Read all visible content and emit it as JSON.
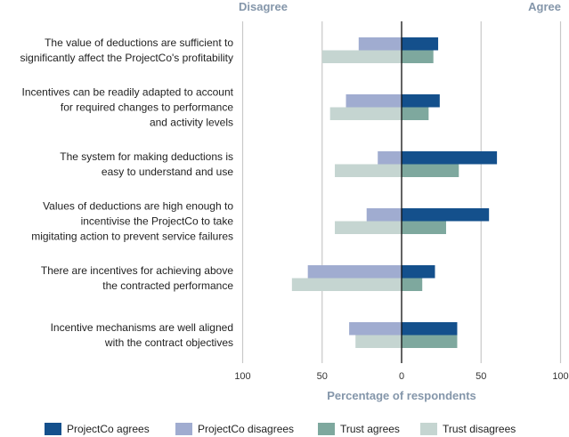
{
  "chart_data": {
    "type": "bar",
    "orientation": "horizontal-diverging",
    "header_left": "Disagree",
    "header_right": "Agree",
    "xlabel": "Percentage of respondents",
    "xlim": [
      -100,
      100
    ],
    "xticks": [
      "100",
      "50",
      "0",
      "50",
      "100"
    ],
    "grid": true,
    "legend_position": "bottom",
    "categories": [
      [
        "The value of deductions are sufficient to",
        "significantly affect the ProjectCo's profitability"
      ],
      [
        "Incentives can be readily adapted to account",
        "for required changes to performance",
        "and activity levels"
      ],
      [
        "The system for making deductions is",
        "easy to understand and use"
      ],
      [
        "Values of deductions are high enough to",
        "incentivise the ProjectCo to take",
        "migitating action to prevent service failures"
      ],
      [
        "There are incentives for achieving above",
        "the contracted performance"
      ],
      [
        "Incentive mechanisms are well aligned",
        "with the contract objectives"
      ]
    ],
    "series": [
      {
        "name": "ProjectCo agrees",
        "side": "agree",
        "color": "#14508c",
        "values": [
          23,
          24,
          60,
          55,
          21,
          35
        ]
      },
      {
        "name": "ProjectCo disagrees",
        "side": "disagree",
        "color": "#a0acd0",
        "values": [
          27,
          35,
          15,
          22,
          59,
          33
        ]
      },
      {
        "name": "Trust agrees",
        "side": "agree",
        "color": "#7ea89e",
        "values": [
          20,
          17,
          36,
          28,
          13,
          35
        ]
      },
      {
        "name": "Trust disagrees",
        "side": "disagree",
        "color": "#c5d5d1",
        "values": [
          50,
          45,
          42,
          42,
          69,
          29
        ]
      }
    ]
  }
}
